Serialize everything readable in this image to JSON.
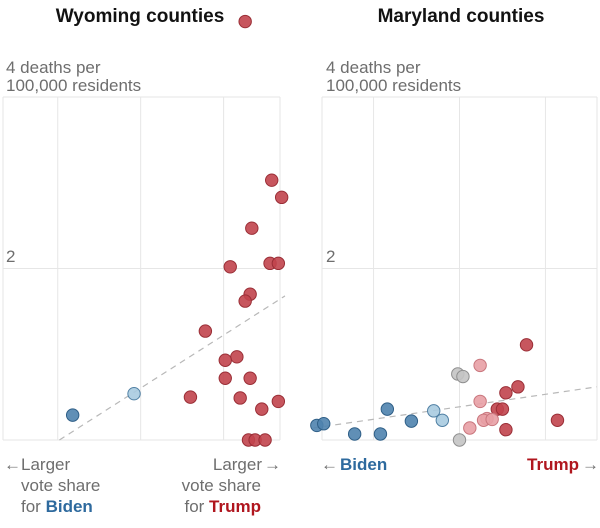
{
  "chart_data": [
    {
      "type": "scatter",
      "title": "Wyoming counties",
      "ylabel": "4 deaths per\n100,000 residents",
      "ylabel_lines": [
        "4 deaths per",
        "100,000 residents"
      ],
      "y_ticks": [
        {
          "value": 2,
          "label": "2"
        }
      ],
      "ylim": [
        0,
        4
      ],
      "xlim": [
        -83,
        84
      ],
      "x_grid": [
        -50,
        0,
        50
      ],
      "xlabel_left_lines": [
        "Larger",
        "vote share",
        "for "
      ],
      "xlabel_left_emph": "Biden",
      "xlabel_right_lines": [
        "Larger",
        "vote share",
        "for "
      ],
      "xlabel_right_emph": "Trump",
      "arrow_left": "←",
      "arrow_right": "→",
      "trendline": {
        "x": [
          -49,
          87
        ],
        "y": [
          0,
          1.68
        ]
      },
      "points": [
        {
          "x": 63,
          "y": 4.88,
          "cat": "trump_strong"
        },
        {
          "x": 79,
          "y": 3.03,
          "cat": "trump_strong"
        },
        {
          "x": 85,
          "y": 2.83,
          "cat": "trump_strong"
        },
        {
          "x": 67,
          "y": 2.47,
          "cat": "trump_strong"
        },
        {
          "x": 54,
          "y": 2.02,
          "cat": "trump_strong"
        },
        {
          "x": 78,
          "y": 2.06,
          "cat": "trump_strong"
        },
        {
          "x": 83,
          "y": 2.06,
          "cat": "trump_strong"
        },
        {
          "x": 66,
          "y": 1.7,
          "cat": "trump_strong"
        },
        {
          "x": 63,
          "y": 1.62,
          "cat": "trump_strong"
        },
        {
          "x": 39,
          "y": 1.27,
          "cat": "trump_strong"
        },
        {
          "x": 58,
          "y": 0.97,
          "cat": "trump_strong"
        },
        {
          "x": 51,
          "y": 0.93,
          "cat": "trump_strong"
        },
        {
          "x": 51,
          "y": 0.72,
          "cat": "trump_strong"
        },
        {
          "x": 66,
          "y": 0.72,
          "cat": "trump_strong"
        },
        {
          "x": 30,
          "y": 0.5,
          "cat": "trump_strong"
        },
        {
          "x": 60,
          "y": 0.49,
          "cat": "trump_strong"
        },
        {
          "x": 83,
          "y": 0.45,
          "cat": "trump_strong"
        },
        {
          "x": 73,
          "y": 0.36,
          "cat": "trump_strong"
        },
        {
          "x": 65,
          "y": 0,
          "cat": "trump_strong"
        },
        {
          "x": 69,
          "y": 0,
          "cat": "trump_strong"
        },
        {
          "x": 75,
          "y": 0,
          "cat": "trump_strong"
        },
        {
          "x": -41,
          "y": 0.29,
          "cat": "biden_strong"
        },
        {
          "x": -4,
          "y": 0.54,
          "cat": "biden_lean"
        }
      ]
    },
    {
      "type": "scatter",
      "title": "Maryland counties",
      "ylabel": "4 deaths per\n100,000 residents",
      "ylabel_lines": [
        "4 deaths per",
        "100,000 residents"
      ],
      "y_ticks": [
        {
          "value": 2,
          "label": "2"
        }
      ],
      "ylim": [
        0,
        4
      ],
      "xlim": [
        -80,
        80
      ],
      "x_grid": [
        -50,
        0,
        50
      ],
      "xlabel_left": "Biden",
      "xlabel_right": "Trump",
      "arrow_left": "←",
      "arrow_right": "→",
      "trendline": {
        "x": [
          -85,
          80
        ],
        "y": [
          0.14,
          0.62
        ]
      },
      "points": [
        {
          "x": 39,
          "y": 1.11,
          "cat": "trump_strong"
        },
        {
          "x": 12,
          "y": 0.87,
          "cat": "trump_lean"
        },
        {
          "x": -1,
          "y": 0.77,
          "cat": "tossup"
        },
        {
          "x": 2,
          "y": 0.74,
          "cat": "tossup"
        },
        {
          "x": 34,
          "y": 0.62,
          "cat": "trump_strong"
        },
        {
          "x": 27,
          "y": 0.55,
          "cat": "trump_strong"
        },
        {
          "x": 12,
          "y": 0.45,
          "cat": "trump_lean"
        },
        {
          "x": 22,
          "y": 0.36,
          "cat": "trump_strong"
        },
        {
          "x": 25,
          "y": 0.36,
          "cat": "trump_strong"
        },
        {
          "x": 16,
          "y": 0.25,
          "cat": "trump_lean"
        },
        {
          "x": 14,
          "y": 0.23,
          "cat": "trump_lean"
        },
        {
          "x": 19,
          "y": 0.24,
          "cat": "trump_lean"
        },
        {
          "x": 6,
          "y": 0.14,
          "cat": "trump_lean"
        },
        {
          "x": 27,
          "y": 0.12,
          "cat": "trump_strong"
        },
        {
          "x": 57,
          "y": 0.23,
          "cat": "trump_strong"
        },
        {
          "x": 0,
          "y": 0,
          "cat": "tossup"
        },
        {
          "x": -42,
          "y": 0.36,
          "cat": "biden_strong"
        },
        {
          "x": -83,
          "y": 0.17,
          "cat": "biden_strong"
        },
        {
          "x": -79,
          "y": 0.19,
          "cat": "biden_strong"
        },
        {
          "x": -61,
          "y": 0.07,
          "cat": "biden_strong"
        },
        {
          "x": -46,
          "y": 0.07,
          "cat": "biden_strong"
        },
        {
          "x": -28,
          "y": 0.22,
          "cat": "biden_strong"
        },
        {
          "x": -15,
          "y": 0.34,
          "cat": "biden_lean"
        },
        {
          "x": -10,
          "y": 0.23,
          "cat": "biden_lean"
        }
      ]
    }
  ],
  "colors": {
    "trump_strong": {
      "fill": "#c1444d",
      "stroke": "#9a2e36"
    },
    "trump_lean": {
      "fill": "#e8a0a5",
      "stroke": "#c9767d"
    },
    "tossup": {
      "fill": "#c4c4c4",
      "stroke": "#8f8f8f"
    },
    "biden_lean": {
      "fill": "#a9cbe0",
      "stroke": "#4f7fa3"
    },
    "biden_strong": {
      "fill": "#4f83ae",
      "stroke": "#2f5f87"
    },
    "biden_label": "#2e6a9e",
    "trump_label": "#b0161e"
  }
}
